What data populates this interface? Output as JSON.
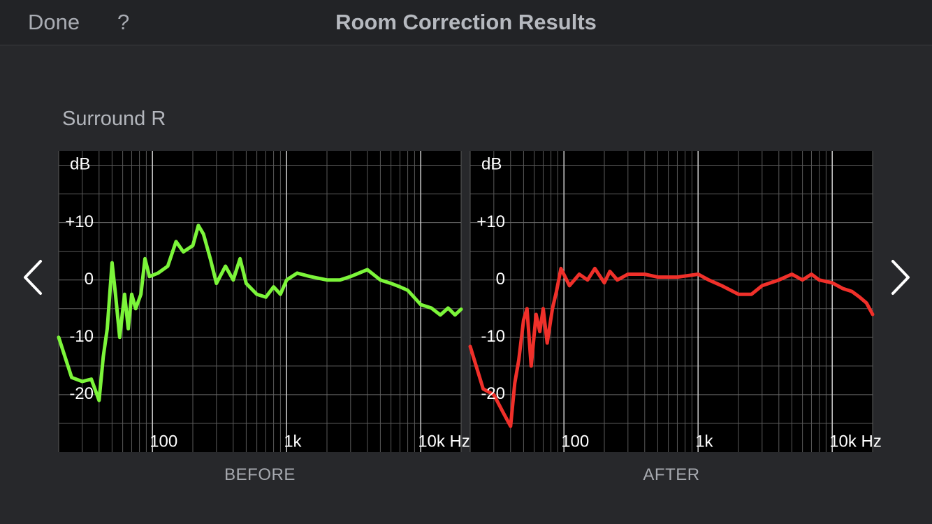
{
  "header": {
    "done": "Done",
    "help": "?",
    "title": "Room Correction Results"
  },
  "section_title": "Surround R",
  "chart_data": [
    {
      "type": "line",
      "caption": "BEFORE",
      "ylabel": "dB",
      "xscale": "log",
      "xlim": [
        20,
        20000
      ],
      "ylim": [
        -30,
        22.5
      ],
      "xticks": [
        100,
        {
          "value": 1000,
          "label": "1k"
        },
        {
          "value": 10000,
          "label": "10k Hz"
        }
      ],
      "yticks": [
        -20,
        -10,
        0,
        {
          "value": 10,
          "label": "+10"
        }
      ],
      "xgrid": [
        20,
        30,
        40,
        50,
        60,
        70,
        80,
        90,
        200,
        300,
        400,
        500,
        600,
        700,
        800,
        900,
        2000,
        3000,
        4000,
        5000,
        6000,
        7000,
        8000,
        9000,
        20000
      ],
      "ygrid": [
        -25,
        -15,
        -5,
        5,
        15,
        20
      ],
      "x": [
        20,
        25,
        30,
        35,
        40,
        43,
        46,
        50,
        53,
        57,
        62,
        66,
        70,
        75,
        82,
        88,
        95,
        110,
        130,
        150,
        170,
        200,
        220,
        240,
        270,
        300,
        350,
        400,
        450,
        500,
        600,
        700,
        800,
        900,
        1000,
        1200,
        1500,
        2000,
        2500,
        3000,
        4000,
        5000,
        6000,
        7000,
        8000,
        10000,
        12000,
        14000,
        16000,
        18000,
        20000
      ],
      "series": [
        {
          "color": "#7cf53a",
          "values": [
            -10,
            -17,
            -17.7,
            -17.3,
            -21,
            -13.4,
            -8.5,
            3,
            -2.5,
            -10,
            -2.5,
            -8.5,
            -2.5,
            -5,
            -2.5,
            3.7,
            0.6,
            1.2,
            2.4,
            6.7,
            4.9,
            6,
            9.5,
            8,
            3.7,
            -0.6,
            2.4,
            0,
            3.7,
            -0.6,
            -2.5,
            -3,
            -1.2,
            -2.5,
            0,
            1.2,
            0.6,
            0,
            0,
            0.6,
            1.8,
            0,
            -0.6,
            -1.2,
            -1.8,
            -4.3,
            -4.9,
            -6.1,
            -4.9,
            -6.1,
            -5.1
          ]
        }
      ]
    },
    {
      "type": "line",
      "caption": "AFTER",
      "ylabel": "dB",
      "xscale": "log",
      "xlim": [
        20,
        20000
      ],
      "ylim": [
        -30,
        22.5
      ],
      "xticks": [
        100,
        {
          "value": 1000,
          "label": "1k"
        },
        {
          "value": 10000,
          "label": "10k Hz"
        }
      ],
      "yticks": [
        -20,
        -10,
        0,
        {
          "value": 10,
          "label": "+10"
        }
      ],
      "xgrid": [
        20,
        30,
        40,
        50,
        60,
        70,
        80,
        90,
        200,
        300,
        400,
        500,
        600,
        700,
        800,
        900,
        2000,
        3000,
        4000,
        5000,
        6000,
        7000,
        8000,
        9000,
        20000
      ],
      "ygrid": [
        -25,
        -15,
        -5,
        5,
        15,
        20
      ],
      "x": [
        20,
        25,
        30,
        35,
        40,
        43,
        46,
        50,
        53,
        57,
        62,
        66,
        70,
        75,
        82,
        88,
        95,
        110,
        130,
        150,
        170,
        200,
        220,
        250,
        300,
        400,
        500,
        700,
        1000,
        1200,
        1500,
        2000,
        2500,
        3000,
        4000,
        5000,
        6000,
        7000,
        8000,
        10000,
        12000,
        14000,
        16000,
        18000,
        20000
      ],
      "series": [
        {
          "color": "#f0302a",
          "values": [
            -11.6,
            -19,
            -20,
            -23,
            -25.5,
            -18,
            -14,
            -7,
            -5,
            -15,
            -6,
            -9,
            -5,
            -11,
            -5,
            -2,
            2,
            -1,
            1,
            0,
            2,
            -0.5,
            1.5,
            0,
            1,
            1,
            0.5,
            0.5,
            1,
            0,
            -1,
            -2.5,
            -2.5,
            -1,
            0,
            1,
            0,
            1,
            0,
            -0.5,
            -1.5,
            -2,
            -3,
            -4,
            -6
          ]
        }
      ]
    }
  ]
}
